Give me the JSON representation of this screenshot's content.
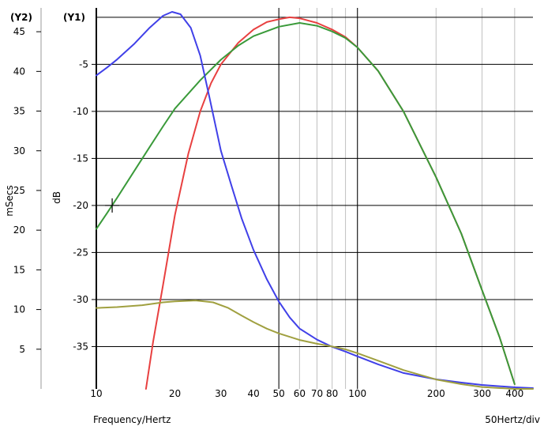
{
  "chart_data": {
    "type": "line",
    "x_scale": "log",
    "xlim": [
      10,
      470
    ],
    "x_ticks": [
      10,
      20,
      30,
      40,
      50,
      60,
      70,
      80,
      100,
      200,
      300,
      400
    ],
    "x_grid_minor": [
      50,
      60,
      70,
      80,
      90,
      100,
      200,
      300,
      400
    ],
    "xlabel": "Frequency/Hertz",
    "xnote": "50Hertz/div",
    "y1": {
      "header": "(Y1)",
      "label": "dB",
      "lim": [
        -39.5,
        1
      ],
      "ticks": [
        -5,
        -10,
        -15,
        -20,
        -25,
        -30,
        -35
      ],
      "grid": [
        0,
        -5,
        -10,
        -15,
        -20,
        -25,
        -30,
        -35
      ]
    },
    "y2": {
      "header": "(Y2)",
      "label": "mSecs",
      "lim": [
        0,
        48
      ],
      "ticks": [
        45,
        40,
        35,
        30,
        25,
        20,
        15,
        10,
        5
      ]
    },
    "grid": true,
    "cursor": {
      "x": 11.5,
      "y": -20
    },
    "series": [
      {
        "axis": "y1",
        "color": "#e84040",
        "points": [
          [
            15.5,
            -39.5
          ],
          [
            16.5,
            -34.5
          ],
          [
            18,
            -28.5
          ],
          [
            20,
            -21
          ],
          [
            22.5,
            -14.5
          ],
          [
            25,
            -10
          ],
          [
            27.5,
            -7
          ],
          [
            30,
            -5
          ],
          [
            35,
            -2.7
          ],
          [
            40,
            -1.3
          ],
          [
            45,
            -0.5
          ],
          [
            50,
            -0.2
          ],
          [
            55,
            0
          ],
          [
            60,
            -0.1
          ],
          [
            70,
            -0.6
          ],
          [
            80,
            -1.3
          ],
          [
            90,
            -2.1
          ],
          [
            100,
            -3.2
          ],
          [
            120,
            -5.7
          ],
          [
            150,
            -10
          ],
          [
            200,
            -17
          ],
          [
            250,
            -23
          ],
          [
            300,
            -29
          ],
          [
            350,
            -34
          ],
          [
            400,
            -39
          ]
        ]
      },
      {
        "axis": "y1",
        "color": "#3a9a3a",
        "points": [
          [
            10,
            -22.5
          ],
          [
            11,
            -20.8
          ],
          [
            12,
            -19.2
          ],
          [
            14,
            -16.3
          ],
          [
            16,
            -13.8
          ],
          [
            18,
            -11.6
          ],
          [
            20,
            -9.7
          ],
          [
            25,
            -6.7
          ],
          [
            30,
            -4.5
          ],
          [
            35,
            -3
          ],
          [
            40,
            -2
          ],
          [
            50,
            -1
          ],
          [
            60,
            -0.6
          ],
          [
            70,
            -0.9
          ],
          [
            80,
            -1.5
          ],
          [
            90,
            -2.2
          ],
          [
            100,
            -3.2
          ],
          [
            120,
            -5.7
          ],
          [
            150,
            -10
          ],
          [
            200,
            -17
          ],
          [
            250,
            -23
          ],
          [
            300,
            -29
          ],
          [
            350,
            -34
          ],
          [
            400,
            -39
          ]
        ]
      },
      {
        "axis": "y2",
        "color": "#4040e8",
        "points": [
          [
            10,
            39.5
          ],
          [
            11,
            40.5
          ],
          [
            12,
            41.5
          ],
          [
            14,
            43.5
          ],
          [
            16,
            45.5
          ],
          [
            18,
            47
          ],
          [
            19.5,
            47.5
          ],
          [
            21,
            47.2
          ],
          [
            23,
            45.5
          ],
          [
            25,
            42
          ],
          [
            27,
            37
          ],
          [
            30,
            30
          ],
          [
            33,
            25.5
          ],
          [
            36,
            21.5
          ],
          [
            40,
            17.5
          ],
          [
            45,
            13.8
          ],
          [
            50,
            11
          ],
          [
            55,
            9
          ],
          [
            60,
            7.6
          ],
          [
            70,
            6.2
          ],
          [
            80,
            5.3
          ],
          [
            90,
            4.7
          ],
          [
            100,
            4.1
          ],
          [
            120,
            3.1
          ],
          [
            150,
            2
          ],
          [
            200,
            1.2
          ],
          [
            250,
            0.8
          ],
          [
            300,
            0.5
          ],
          [
            400,
            0.2
          ],
          [
            470,
            0.1
          ]
        ]
      },
      {
        "axis": "y1",
        "color": "#a0a040",
        "points": [
          [
            10,
            -30.9
          ],
          [
            12,
            -30.8
          ],
          [
            15,
            -30.6
          ],
          [
            18,
            -30.3
          ],
          [
            20,
            -30.2
          ],
          [
            24,
            -30.1
          ],
          [
            28,
            -30.3
          ],
          [
            32,
            -30.9
          ],
          [
            36,
            -31.7
          ],
          [
            40,
            -32.4
          ],
          [
            45,
            -33.1
          ],
          [
            50,
            -33.6
          ],
          [
            60,
            -34.3
          ],
          [
            70,
            -34.7
          ],
          [
            80,
            -35
          ],
          [
            90,
            -35.3
          ],
          [
            100,
            -35.7
          ],
          [
            120,
            -36.5
          ],
          [
            150,
            -37.5
          ],
          [
            200,
            -38.5
          ],
          [
            250,
            -39
          ],
          [
            300,
            -39.3
          ],
          [
            400,
            -39.5
          ],
          [
            470,
            -39.5
          ]
        ]
      }
    ]
  }
}
